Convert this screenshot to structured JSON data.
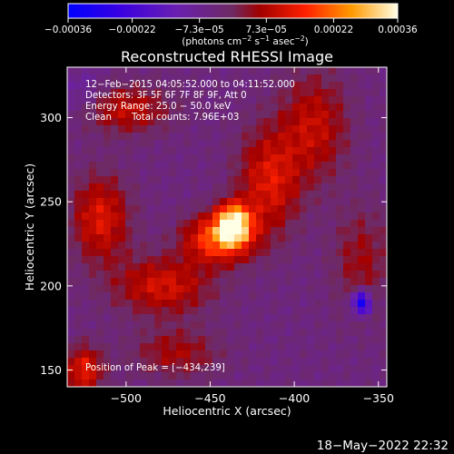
{
  "chart_data": {
    "type": "heatmap",
    "title": "Reconstructed RHESSI Image",
    "xlabel": "Heliocentric X (arcsec)",
    "ylabel": "Heliocentric Y (arcsec)",
    "xlim": [
      -535,
      -345
    ],
    "ylim": [
      140,
      330
    ],
    "x_ticks": [
      -500,
      -450,
      -400,
      -350
    ],
    "x_tick_labels": [
      "−500",
      "−450",
      "−400",
      "−350"
    ],
    "y_ticks": [
      150,
      200,
      250,
      300
    ],
    "y_tick_labels": [
      "150",
      "200",
      "250",
      "300"
    ],
    "colorbar": {
      "range": [
        -0.00036,
        0.00036
      ],
      "ticks": [
        -0.00036,
        -0.00022,
        -7.3e-05,
        7.3e-05,
        0.00022,
        0.00036
      ],
      "tick_labels": [
        "−0.00036",
        "−0.00022",
        "−7.3e−05",
        "7.3e−05",
        "0.00022",
        "0.00036"
      ],
      "unit_parts": [
        "(photons cm",
        "−2",
        " s",
        "−1",
        " asec",
        "−2",
        ")"
      ]
    },
    "annotations": [
      "12−Feb−2015 04:05:52.000 to 04:11:52.000",
      "Detectors: 3F 5F 6F 7F 8F 9F, Att 0",
      "Energy Range: 25.0 − 50.0 keV",
      "Clean",
      "Total counts: 7.96E+03"
    ],
    "peak_label": "Position of Peak = [−434,239]",
    "peak_position": [
      -434,
      239
    ],
    "timestamp": "18−May−2022 22:32",
    "features": [
      {
        "x": -436,
        "y": 237,
        "peak": 0.00036,
        "sx": 7,
        "sy": 8
      },
      {
        "x": -445,
        "y": 228,
        "peak": 0.00024,
        "sx": 14,
        "sy": 10
      },
      {
        "x": -415,
        "y": 262,
        "peak": 0.00016,
        "sx": 13,
        "sy": 22
      },
      {
        "x": -388,
        "y": 295,
        "peak": 0.00013,
        "sx": 14,
        "sy": 22
      },
      {
        "x": -478,
        "y": 200,
        "peak": 0.00015,
        "sx": 20,
        "sy": 12
      },
      {
        "x": -515,
        "y": 240,
        "peak": 0.00016,
        "sx": 12,
        "sy": 18
      },
      {
        "x": -500,
        "y": 305,
        "peak": 0.00013,
        "sx": 18,
        "sy": 10
      },
      {
        "x": -525,
        "y": 150,
        "peak": 0.00017,
        "sx": 8,
        "sy": 10
      },
      {
        "x": -470,
        "y": 160,
        "peak": 0.0001,
        "sx": 18,
        "sy": 10
      },
      {
        "x": -360,
        "y": 215,
        "peak": 9e-05,
        "sx": 12,
        "sy": 22
      },
      {
        "x": -360,
        "y": 190,
        "peak": -0.0003,
        "sx": 4,
        "sy": 5
      },
      {
        "x": -525,
        "y": 315,
        "peak": -6e-05,
        "sx": 10,
        "sy": 10
      }
    ]
  }
}
